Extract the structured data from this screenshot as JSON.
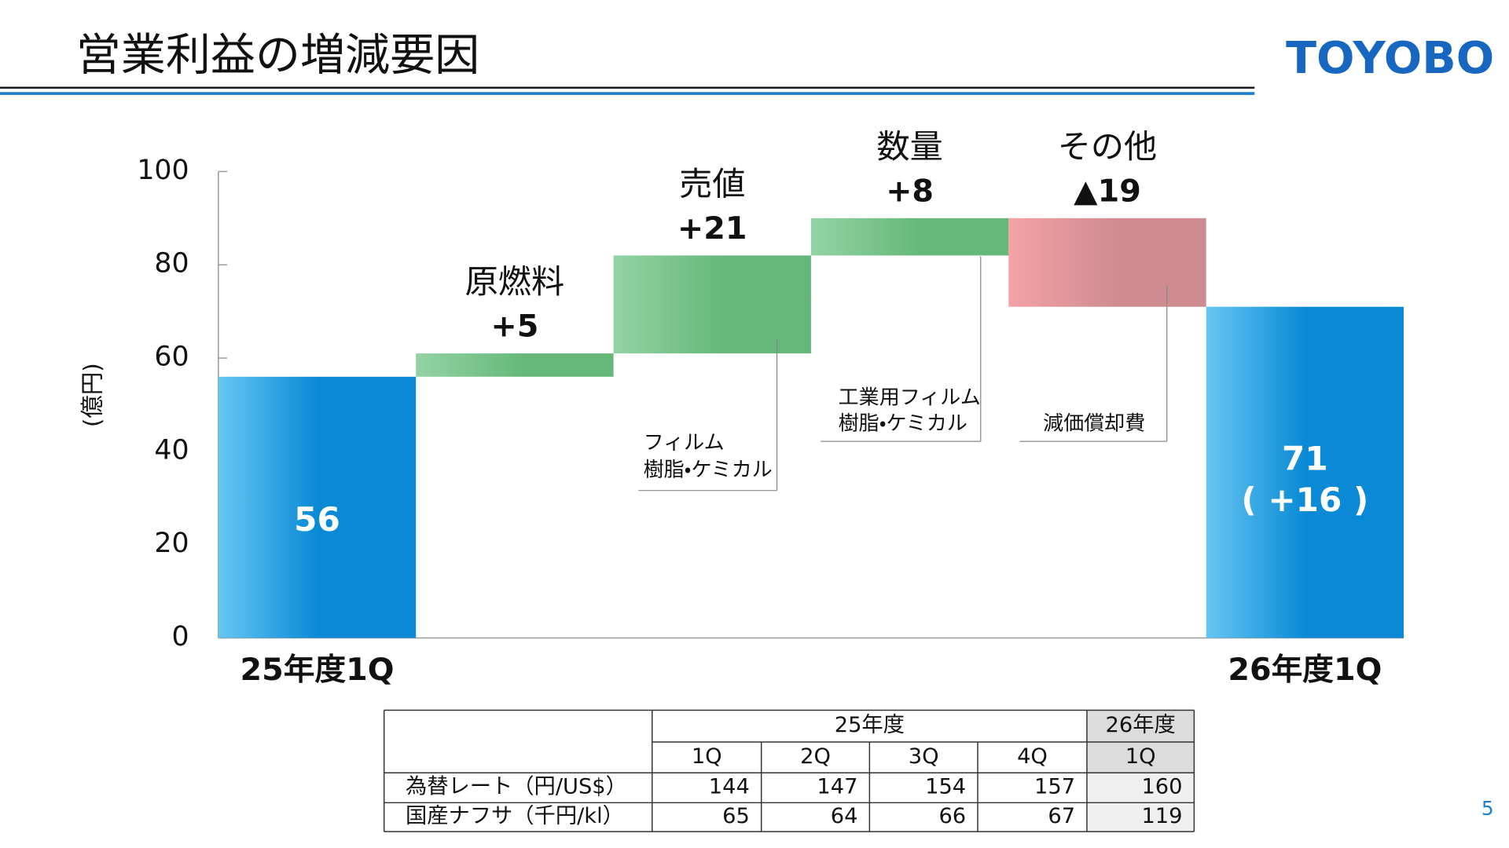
{
  "title": "営業利益の増減要因",
  "logo": "TOYOBO",
  "page_number": "5",
  "chart_data": {
    "type": "waterfall",
    "ylabel": "(億円)",
    "categories": [
      "25年度1Q",
      "原燃料",
      "売値",
      "数量",
      "その他",
      "26年度1Q"
    ],
    "values": [
      56,
      5,
      21,
      8,
      -19,
      71
    ],
    "value_labels": [
      "56",
      "+5",
      "+21",
      "+8",
      "▲19",
      "71"
    ],
    "total_change_label": "( +16 )",
    "annotations": [
      [
        "フィルム",
        "樹脂・ケミカル"
      ],
      [
        "工業用フィルム",
        "樹脂・ケミカル"
      ],
      [
        "減価償却費"
      ]
    ],
    "ylim": [
      0,
      100
    ],
    "yticks": [
      0,
      20,
      40,
      60,
      80,
      100
    ],
    "total_colors": [
      "#66c6f2",
      "#0a8ad6"
    ],
    "increase_colors": [
      "#93d3a4",
      "#66b87a"
    ],
    "decrease_colors": [
      "#f4a2a6",
      "#cf8c90"
    ]
  },
  "table": {
    "group_headers": [
      "25年度",
      "26年度"
    ],
    "columns": [
      "1Q",
      "2Q",
      "3Q",
      "4Q",
      "1Q"
    ],
    "rows": [
      [
        "為替レート（円/US$）",
        144,
        147,
        154,
        157,
        160
      ],
      [
        "国産ナフサ（千円/kl）",
        65,
        64,
        66,
        67,
        119
      ]
    ]
  }
}
